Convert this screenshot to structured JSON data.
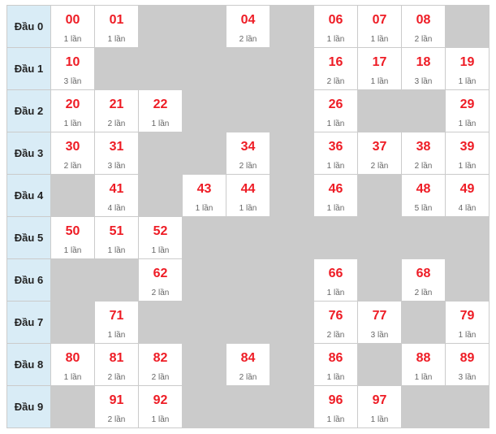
{
  "accent_color": "#ee1c25",
  "rows": [
    {
      "label": "Đầu 0",
      "cells": [
        {
          "num": "00",
          "count": "1 lần"
        },
        {
          "num": "01",
          "count": "1 lần"
        },
        null,
        null,
        {
          "num": "04",
          "count": "2 lần"
        },
        null,
        {
          "num": "06",
          "count": "1 lần"
        },
        {
          "num": "07",
          "count": "1 lần"
        },
        {
          "num": "08",
          "count": "2 lần"
        },
        null
      ]
    },
    {
      "label": "Đầu 1",
      "cells": [
        {
          "num": "10",
          "count": "3 lần"
        },
        null,
        null,
        null,
        null,
        null,
        {
          "num": "16",
          "count": "2 lần"
        },
        {
          "num": "17",
          "count": "1 lần"
        },
        {
          "num": "18",
          "count": "3 lần"
        },
        {
          "num": "19",
          "count": "1 lần"
        }
      ]
    },
    {
      "label": "Đầu 2",
      "cells": [
        {
          "num": "20",
          "count": "1 lần"
        },
        {
          "num": "21",
          "count": "2 lần"
        },
        {
          "num": "22",
          "count": "1 lần"
        },
        null,
        null,
        null,
        {
          "num": "26",
          "count": "1 lần"
        },
        null,
        null,
        {
          "num": "29",
          "count": "1 lần"
        }
      ]
    },
    {
      "label": "Đầu 3",
      "cells": [
        {
          "num": "30",
          "count": "2 lần"
        },
        {
          "num": "31",
          "count": "3 lần"
        },
        null,
        null,
        {
          "num": "34",
          "count": "2 lần"
        },
        null,
        {
          "num": "36",
          "count": "1 lần"
        },
        {
          "num": "37",
          "count": "2 lần"
        },
        {
          "num": "38",
          "count": "2 lần"
        },
        {
          "num": "39",
          "count": "1 lần"
        }
      ]
    },
    {
      "label": "Đầu 4",
      "cells": [
        null,
        {
          "num": "41",
          "count": "4 lần"
        },
        null,
        {
          "num": "43",
          "count": "1 lần"
        },
        {
          "num": "44",
          "count": "1 lần"
        },
        null,
        {
          "num": "46",
          "count": "1 lần"
        },
        null,
        {
          "num": "48",
          "count": "5 lần"
        },
        {
          "num": "49",
          "count": "4 lần"
        }
      ]
    },
    {
      "label": "Đầu 5",
      "cells": [
        {
          "num": "50",
          "count": "1 lần"
        },
        {
          "num": "51",
          "count": "1 lần"
        },
        {
          "num": "52",
          "count": "1 lần"
        },
        null,
        null,
        null,
        null,
        null,
        null,
        null
      ]
    },
    {
      "label": "Đầu 6",
      "cells": [
        null,
        null,
        {
          "num": "62",
          "count": "2 lần"
        },
        null,
        null,
        null,
        {
          "num": "66",
          "count": "1 lần"
        },
        null,
        {
          "num": "68",
          "count": "2 lần"
        },
        null
      ]
    },
    {
      "label": "Đầu 7",
      "cells": [
        null,
        {
          "num": "71",
          "count": "1 lần"
        },
        null,
        null,
        null,
        null,
        {
          "num": "76",
          "count": "2 lần"
        },
        {
          "num": "77",
          "count": "3 lần"
        },
        null,
        {
          "num": "79",
          "count": "1 lần"
        }
      ]
    },
    {
      "label": "Đầu 8",
      "cells": [
        {
          "num": "80",
          "count": "1 lần"
        },
        {
          "num": "81",
          "count": "2 lần"
        },
        {
          "num": "82",
          "count": "2 lần"
        },
        null,
        {
          "num": "84",
          "count": "2 lần"
        },
        null,
        {
          "num": "86",
          "count": "1 lần"
        },
        null,
        {
          "num": "88",
          "count": "1 lần"
        },
        {
          "num": "89",
          "count": "3 lần"
        }
      ]
    },
    {
      "label": "Đầu 9",
      "cells": [
        null,
        {
          "num": "91",
          "count": "2 lần"
        },
        {
          "num": "92",
          "count": "1 lần"
        },
        null,
        null,
        null,
        {
          "num": "96",
          "count": "1 lần"
        },
        {
          "num": "97",
          "count": "1 lần"
        },
        null,
        null
      ]
    }
  ]
}
